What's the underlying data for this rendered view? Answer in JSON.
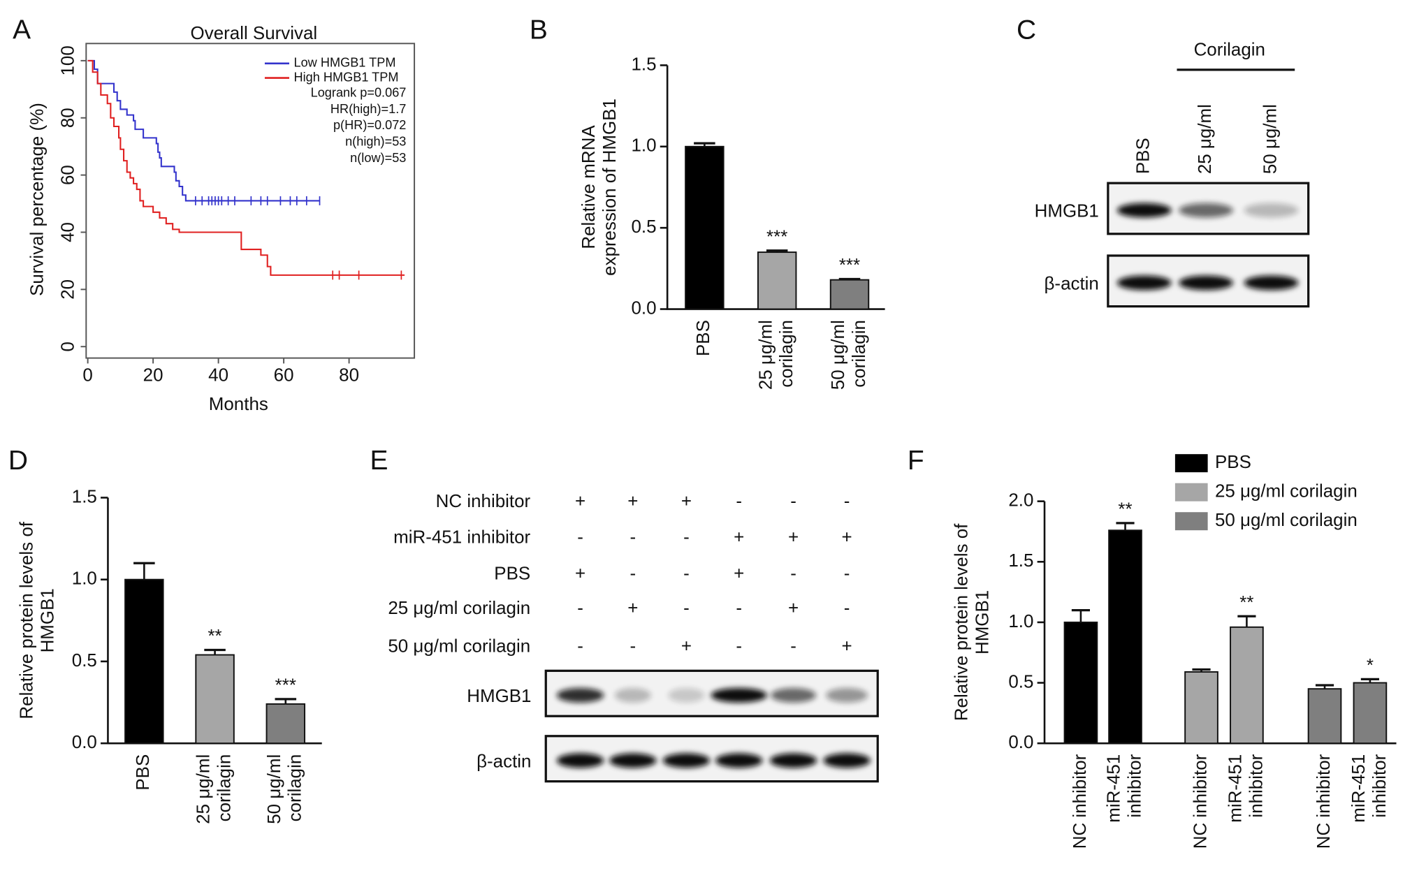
{
  "chart_data": [
    {
      "type": "line",
      "step": true,
      "title": "Overall Survival",
      "xlabel": "Months",
      "ylabel": "Survival percentage (%)",
      "xlim": [
        -0.5,
        100
      ],
      "ylim": [
        -4,
        106
      ],
      "xticks": [
        0,
        20,
        40,
        60,
        80
      ],
      "yticks": [
        0,
        20,
        40,
        60,
        80,
        100
      ],
      "legend": "upper right",
      "series": [
        {
          "name": "Low HMGB1 TPM",
          "color": "#3333cc",
          "x": [
            0,
            2,
            3,
            8,
            9,
            10,
            12,
            14,
            14.5,
            17,
            21,
            21.5,
            22,
            22.5,
            26.5,
            27,
            28,
            29,
            30,
            71
          ],
          "values": [
            100,
            97,
            92,
            89,
            86,
            83,
            81,
            79,
            76,
            73,
            71,
            68,
            66,
            63,
            61,
            58,
            56,
            53,
            51,
            51
          ],
          "censor_x": [
            33,
            35,
            37,
            38,
            39,
            40,
            41,
            43,
            45,
            50,
            53,
            55,
            59,
            62,
            64,
            67,
            71
          ]
        },
        {
          "name": "High HMGB1 TPM",
          "color": "#e02020",
          "x": [
            0,
            1.5,
            3,
            4,
            6,
            7,
            8,
            9.5,
            10,
            11,
            12,
            13,
            14,
            15,
            16,
            17,
            20,
            22,
            24,
            26,
            28,
            47,
            53,
            55,
            56,
            97
          ],
          "values": [
            100,
            96,
            92,
            88,
            85,
            80,
            77,
            73,
            69,
            65,
            61,
            59,
            57,
            55,
            51,
            49,
            47,
            45,
            43,
            41,
            40,
            34,
            32,
            28,
            25,
            25
          ],
          "censor_x": [
            75,
            77,
            83,
            96
          ]
        }
      ],
      "annotations": [
        "Logrank p=0.067",
        "HR(high)=1.7",
        "p(HR)=0.072",
        "n(high)=53",
        "n(low)=53"
      ]
    },
    {
      "type": "bar",
      "ylabel": "Relative mRNA\nexpression of HMGB1",
      "categories": [
        "PBS",
        "25 μg/ml\ncorilagin",
        "50 μg/ml\ncorilagin"
      ],
      "values": [
        1.0,
        0.35,
        0.18
      ],
      "errors": [
        0.02,
        0.01,
        0.005
      ],
      "annotations": [
        null,
        "***",
        "***"
      ],
      "colors": [
        "#000000",
        "#a6a6a6",
        "#7f7f7f"
      ],
      "ylim": [
        0,
        1.5
      ],
      "yticks": [
        {
          "value": 0,
          "label": "0.0"
        },
        {
          "value": 0.5,
          "label": "0.5"
        },
        {
          "value": 1,
          "label": "1.0"
        },
        {
          "value": 1.5,
          "label": "1.5"
        }
      ]
    },
    {
      "type": "bar",
      "ylabel": "Relative protein levels of\nHMGB1",
      "categories": [
        "PBS",
        "25 μg/ml\ncorilagin",
        "50 μg/ml\ncorilagin"
      ],
      "values": [
        1.0,
        0.54,
        0.24
      ],
      "errors": [
        0.1,
        0.03,
        0.03
      ],
      "annotations": [
        null,
        "**",
        "***"
      ],
      "colors": [
        "#000000",
        "#a6a6a6",
        "#7f7f7f"
      ],
      "ylim": [
        0,
        1.5
      ],
      "yticks": [
        {
          "value": 0,
          "label": "0.0"
        },
        {
          "value": 0.5,
          "label": "0.5"
        },
        {
          "value": 1,
          "label": "1.0"
        },
        {
          "value": 1.5,
          "label": "1.5"
        }
      ]
    },
    {
      "type": "grouped_bar",
      "ylabel": "Relative protein levels of\nHMGB1",
      "legend": "upper right",
      "categories": [
        "NC inhibitor",
        "miR-451\ninhibitor"
      ],
      "series": [
        {
          "name": "PBS",
          "color": "#000000",
          "values": [
            1.0,
            1.76
          ],
          "errors": [
            0.1,
            0.06
          ],
          "annotations": [
            null,
            "**"
          ]
        },
        {
          "name": "25 μg/ml corilagin",
          "color": "#a6a6a6",
          "values": [
            0.59,
            0.96
          ],
          "errors": [
            0.02,
            0.09
          ],
          "annotations": [
            null,
            "**"
          ]
        },
        {
          "name": "50 μg/ml corilagin",
          "color": "#7f7f7f",
          "values": [
            0.45,
            0.5
          ],
          "errors": [
            0.03,
            0.03
          ],
          "annotations": [
            null,
            "*"
          ]
        }
      ],
      "ylim": [
        0,
        2
      ],
      "yticks": [
        {
          "value": 0,
          "label": "0.0"
        },
        {
          "value": 0.5,
          "label": "0.5"
        },
        {
          "value": 1,
          "label": "1.0"
        },
        {
          "value": 1.5,
          "label": "1.5"
        },
        {
          "value": 2,
          "label": "2.0"
        }
      ]
    }
  ],
  "blots": {
    "C": {
      "group_label": "Corilagin",
      "lanes": [
        "PBS",
        "25 μg/ml",
        "50 μg/ml"
      ],
      "rows": [
        "HMGB1",
        "β-actin"
      ]
    },
    "E": {
      "conditions": [
        {
          "label": "NC inhibitor",
          "signs": [
            "+",
            "+",
            "+",
            "-",
            "-",
            "-"
          ]
        },
        {
          "label": "miR-451 inhibitor",
          "signs": [
            "-",
            "-",
            "-",
            "+",
            "+",
            "+"
          ]
        },
        {
          "label": "PBS",
          "signs": [
            "+",
            "-",
            "-",
            "+",
            "-",
            "-"
          ]
        },
        {
          "label": "25 μg/ml corilagin",
          "signs": [
            "-",
            "+",
            "-",
            "-",
            "+",
            "-"
          ]
        },
        {
          "label": "50 μg/ml corilagin",
          "signs": [
            "-",
            "-",
            "+",
            "-",
            "-",
            "+"
          ]
        }
      ],
      "rows": [
        "HMGB1",
        "β-actin"
      ]
    }
  },
  "panel_labels": [
    "A",
    "B",
    "C",
    "D",
    "E",
    "F"
  ]
}
